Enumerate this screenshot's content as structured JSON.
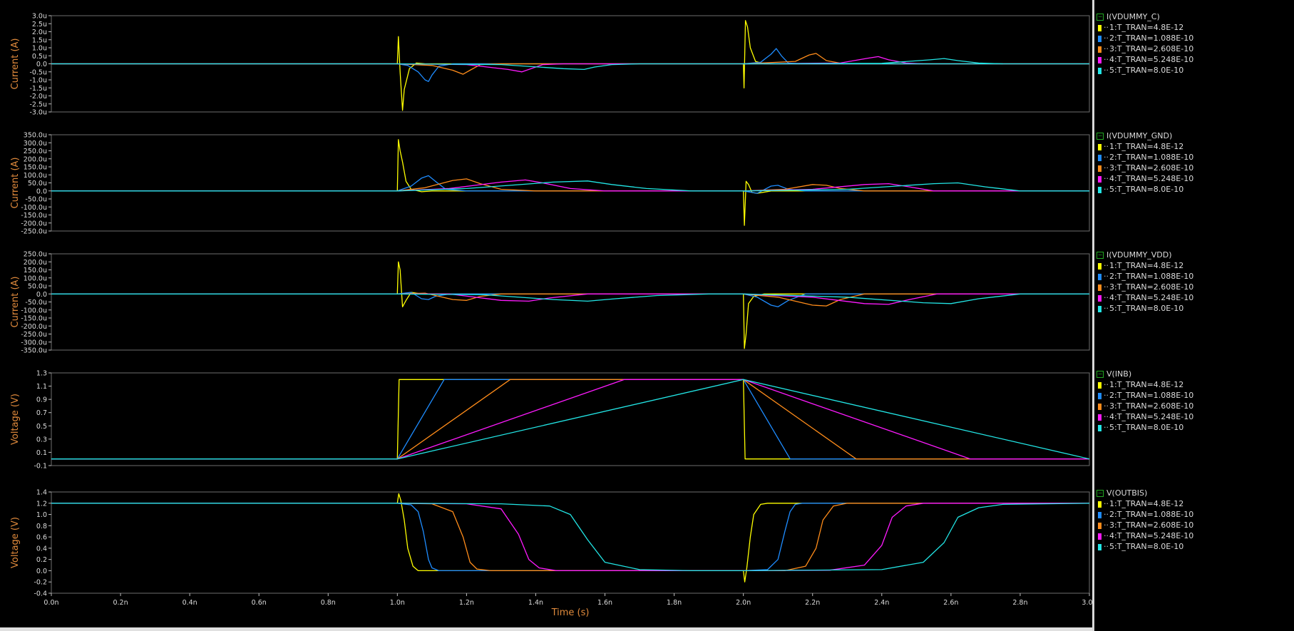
{
  "colors": {
    "background": "#000000",
    "axis_label": "#e08a3c",
    "tick_label": "#dcdcdc",
    "series": [
      "#ffff00",
      "#1e8cff",
      "#ff8c1a",
      "#ff1aff",
      "#22e6e6"
    ]
  },
  "legend_entries": [
    "1:T_TRAN=4.8E-12",
    "2:T_TRAN=1.088E-10",
    "3:T_TRAN=2.608E-10",
    "4:T_TRAN=5.248E-10",
    "5:T_TRAN=8.0E-10"
  ],
  "x_axis": {
    "label": "Time (s)",
    "range": [
      0,
      3.0
    ],
    "ticks": [
      "0.0n",
      "0.2n",
      "0.4n",
      "0.6n",
      "0.8n",
      "1.0n",
      "1.2n",
      "1.4n",
      "1.6n",
      "1.8n",
      "2.0n",
      "2.2n",
      "2.4n",
      "2.6n",
      "2.8n",
      "3.0n"
    ]
  },
  "chart_data": [
    {
      "type": "line",
      "title": "I(VDUMMY_C)",
      "ylabel": "Current (A)",
      "ylim": [
        -3.0,
        3.0
      ],
      "y_ticks": [
        "3.0u",
        "2.5u",
        "2.0u",
        "1.5u",
        "1.0u",
        "0.5u",
        "0.0",
        "-0.5u",
        "-1.0u",
        "-1.5u",
        "-2.0u",
        "-2.5u",
        "-3.0u"
      ],
      "y_tick_values": [
        3.0,
        2.5,
        2.0,
        1.5,
        1.0,
        0.5,
        0.0,
        -0.5,
        -1.0,
        -1.5,
        -2.0,
        -2.5,
        -3.0
      ],
      "series": [
        {
          "name": "1:T_TRAN=4.8E-12",
          "x": [
            0,
            1.0,
            1.003,
            1.008,
            1.015,
            1.02,
            1.035,
            1.055,
            1.08,
            1.12,
            2.0,
            2.002,
            2.006,
            2.012,
            2.02,
            2.035,
            2.06,
            2.1,
            3.0
          ],
          "y": [
            0,
            0,
            1.7,
            -0.5,
            -2.9,
            -1.6,
            -0.3,
            0.05,
            0,
            0,
            0,
            -1.5,
            2.7,
            2.3,
            1.0,
            0.15,
            0,
            0,
            0
          ]
        },
        {
          "name": "2:T_TRAN=1.088E-10",
          "x": [
            0,
            1.0,
            1.03,
            1.06,
            1.08,
            1.09,
            1.1,
            1.12,
            1.16,
            3.0
          ],
          "y": [
            0,
            0,
            -0.1,
            -0.5,
            -1.0,
            -1.1,
            -0.7,
            -0.15,
            0,
            0
          ],
          "x2": [
            2.0,
            2.05,
            2.08,
            2.095,
            2.11,
            2.13,
            2.17
          ],
          "y2": [
            0,
            0.1,
            0.6,
            0.95,
            0.5,
            0.05,
            0
          ]
        },
        {
          "name": "3:T_TRAN=2.608E-10",
          "x": [
            0,
            1.0,
            1.1,
            1.16,
            1.19,
            1.21,
            1.24,
            1.3,
            3.0
          ],
          "y": [
            0,
            0,
            -0.1,
            -0.4,
            -0.65,
            -0.4,
            -0.05,
            0,
            0
          ],
          "x2": [
            2.0,
            2.15,
            2.19,
            2.21,
            2.24,
            2.29
          ],
          "y2": [
            0,
            0.15,
            0.55,
            0.65,
            0.2,
            0
          ]
        },
        {
          "name": "4:T_TRAN=5.248E-10",
          "x": [
            0,
            1.0,
            1.2,
            1.32,
            1.36,
            1.38,
            1.42,
            1.48,
            3.0
          ],
          "y": [
            0,
            0,
            -0.05,
            -0.35,
            -0.5,
            -0.35,
            -0.05,
            0,
            0
          ],
          "x2": [
            2.0,
            2.28,
            2.36,
            2.39,
            2.42,
            2.47,
            2.52
          ],
          "y2": [
            0,
            0.05,
            0.35,
            0.45,
            0.25,
            0.05,
            0
          ]
        },
        {
          "name": "5:T_TRAN=8.0E-10",
          "x": [
            0,
            1.0,
            1.3,
            1.48,
            1.54,
            1.57,
            1.62,
            1.7,
            3.0
          ],
          "y": [
            0,
            0,
            -0.05,
            -0.3,
            -0.35,
            -0.2,
            -0.05,
            0,
            0
          ],
          "x2": [
            2.0,
            2.4,
            2.54,
            2.58,
            2.62,
            2.68,
            2.75
          ],
          "y2": [
            0,
            0.03,
            0.25,
            0.33,
            0.2,
            0.05,
            0
          ]
        }
      ]
    },
    {
      "type": "line",
      "title": "I(VDUMMY_GND)",
      "ylabel": "Current (A)",
      "ylim": [
        -250,
        350
      ],
      "y_ticks": [
        "350.0u",
        "300.0u",
        "250.0u",
        "200.0u",
        "150.0u",
        "100.0u",
        "50.0u",
        "0.0",
        "-50.0u",
        "-100.0u",
        "-150.0u",
        "-200.0u",
        "-250.0u"
      ],
      "y_tick_values": [
        350,
        300,
        250,
        200,
        150,
        100,
        50,
        0,
        -50,
        -100,
        -150,
        -200,
        -250
      ],
      "series": [
        {
          "name": "1:T_TRAN=4.8E-12",
          "x": [
            0,
            1.0,
            1.003,
            1.008,
            1.015,
            1.025,
            1.04,
            1.07,
            1.1,
            2.0,
            2.003,
            2.008,
            2.015,
            2.025,
            2.04,
            2.08,
            3.0
          ],
          "y": [
            0,
            0,
            320,
            250,
            180,
            60,
            10,
            -5,
            0,
            0,
            -215,
            60,
            40,
            -10,
            -15,
            0,
            0
          ]
        },
        {
          "name": "2:T_TRAN=1.088E-10",
          "x": [
            0,
            1.0,
            1.04,
            1.07,
            1.09,
            1.11,
            1.14,
            1.2,
            2.0,
            2.04,
            2.08,
            2.1,
            2.13,
            2.18,
            3.0
          ],
          "y": [
            0,
            0,
            30,
            80,
            95,
            60,
            10,
            0,
            0,
            -15,
            30,
            35,
            10,
            0,
            0
          ]
        },
        {
          "name": "3:T_TRAN=2.608E-10",
          "x": [
            0,
            1.0,
            1.08,
            1.16,
            1.2,
            1.24,
            1.3,
            1.4,
            2.0,
            2.12,
            2.2,
            2.24,
            2.28,
            2.35,
            3.0
          ],
          "y": [
            0,
            0,
            20,
            65,
            75,
            45,
            10,
            0,
            0,
            10,
            40,
            35,
            15,
            0,
            0
          ]
        },
        {
          "name": "4:T_TRAN=5.248E-10",
          "x": [
            0,
            1.0,
            1.15,
            1.3,
            1.37,
            1.42,
            1.5,
            1.6,
            2.0,
            2.2,
            2.35,
            2.42,
            2.48,
            2.55,
            3.0
          ],
          "y": [
            0,
            0,
            15,
            55,
            68,
            50,
            15,
            0,
            0,
            10,
            40,
            45,
            25,
            0,
            0
          ]
        },
        {
          "name": "5:T_TRAN=8.0E-10",
          "x": [
            0,
            1.0,
            1.2,
            1.45,
            1.55,
            1.62,
            1.72,
            1.85,
            2.0,
            2.3,
            2.55,
            2.62,
            2.7,
            2.8,
            3.0
          ],
          "y": [
            0,
            0,
            15,
            55,
            62,
            40,
            15,
            0,
            0,
            10,
            45,
            50,
            25,
            0,
            0
          ]
        }
      ]
    },
    {
      "type": "line",
      "title": "I(VDUMMY_VDD)",
      "ylabel": "Current (A)",
      "ylim": [
        -350,
        250
      ],
      "y_ticks": [
        "250.0u",
        "200.0u",
        "150.0u",
        "100.0u",
        "50.0u",
        "0.0",
        "-50.0u",
        "-100.0u",
        "-150.0u",
        "-200.0u",
        "-250.0u",
        "-300.0u",
        "-350.0u"
      ],
      "y_tick_values": [
        250,
        200,
        150,
        100,
        50,
        0,
        -50,
        -100,
        -150,
        -200,
        -250,
        -300,
        -350
      ],
      "series": [
        {
          "name": "1:T_TRAN=4.8E-12",
          "x": [
            0,
            1.0,
            1.003,
            1.008,
            1.015,
            1.025,
            1.04,
            1.07,
            2.0,
            2.003,
            2.008,
            2.015,
            2.03,
            2.06,
            3.0
          ],
          "y": [
            0,
            0,
            200,
            150,
            -80,
            -40,
            10,
            0,
            0,
            -340,
            -250,
            -60,
            -15,
            0,
            0
          ]
        },
        {
          "name": "2:T_TRAN=1.088E-10",
          "x": [
            0,
            1.0,
            1.04,
            1.07,
            1.09,
            1.11,
            1.15,
            2.0,
            2.04,
            2.08,
            2.1,
            2.13,
            2.18,
            3.0
          ],
          "y": [
            0,
            0,
            10,
            -30,
            -35,
            -15,
            0,
            0,
            -20,
            -70,
            -80,
            -40,
            0,
            0
          ]
        },
        {
          "name": "3:T_TRAN=2.608E-10",
          "x": [
            0,
            1.0,
            1.08,
            1.16,
            1.2,
            1.24,
            1.3,
            2.0,
            2.1,
            2.2,
            2.24,
            2.28,
            2.35,
            3.0
          ],
          "y": [
            0,
            0,
            5,
            -35,
            -40,
            -15,
            0,
            0,
            -20,
            -70,
            -75,
            -35,
            0,
            0
          ]
        },
        {
          "name": "4:T_TRAN=5.248E-10",
          "x": [
            0,
            1.0,
            1.15,
            1.3,
            1.38,
            1.44,
            1.55,
            2.0,
            2.2,
            2.35,
            2.42,
            2.48,
            2.56,
            3.0
          ],
          "y": [
            0,
            0,
            0,
            -40,
            -45,
            -25,
            0,
            0,
            -20,
            -60,
            -65,
            -35,
            0,
            0
          ]
        },
        {
          "name": "5:T_TRAN=8.0E-10",
          "x": [
            0,
            1.0,
            1.25,
            1.45,
            1.55,
            1.63,
            1.75,
            1.9,
            2.0,
            2.3,
            2.52,
            2.6,
            2.68,
            2.8,
            3.0
          ],
          "y": [
            0,
            0,
            -5,
            -35,
            -45,
            -30,
            -10,
            0,
            0,
            -20,
            -55,
            -60,
            -30,
            0,
            0
          ]
        }
      ]
    },
    {
      "type": "line",
      "title": "V(INB)",
      "ylabel": "Voltage (V)",
      "ylim": [
        -0.1,
        1.3
      ],
      "y_ticks": [
        "1.3",
        "1.1",
        "0.9",
        "0.7",
        "0.5",
        "0.3",
        "0.1",
        "-0.1"
      ],
      "y_tick_values": [
        1.3,
        1.1,
        0.9,
        0.7,
        0.5,
        0.3,
        0.1,
        -0.1
      ],
      "series": [
        {
          "name": "1:T_TRAN=4.8E-12",
          "x": [
            0,
            1.0,
            1.005,
            2.0,
            2.005,
            3.0
          ],
          "y": [
            0,
            0,
            1.2,
            1.2,
            0,
            0
          ]
        },
        {
          "name": "2:T_TRAN=1.088E-10",
          "x": [
            0,
            1.0,
            1.1352,
            2.0,
            2.1352,
            3.0
          ],
          "y": [
            0,
            0,
            1.2,
            1.2,
            0,
            0
          ]
        },
        {
          "name": "3:T_TRAN=2.608E-10",
          "x": [
            0,
            1.0,
            1.326,
            2.0,
            2.326,
            3.0
          ],
          "y": [
            0,
            0,
            1.2,
            1.2,
            0,
            0
          ]
        },
        {
          "name": "4:T_TRAN=5.248E-10",
          "x": [
            0,
            1.0,
            1.656,
            2.0,
            2.656,
            3.0
          ],
          "y": [
            0,
            0,
            1.2,
            1.2,
            0,
            0
          ]
        },
        {
          "name": "5:T_TRAN=8.0E-10",
          "x": [
            0,
            1.0,
            2.0,
            3.0
          ],
          "y": [
            0,
            0,
            1.2,
            0
          ]
        }
      ]
    },
    {
      "type": "line",
      "title": "V(OUTBIS)",
      "ylabel": "Voltage (V)",
      "ylim": [
        -0.4,
        1.4
      ],
      "y_ticks": [
        "1.4",
        "1.2",
        "1.0",
        "0.8",
        "0.6",
        "0.4",
        "0.2",
        "0.0",
        "-0.2",
        "-0.4"
      ],
      "y_tick_values": [
        1.4,
        1.2,
        1.0,
        0.8,
        0.6,
        0.4,
        0.2,
        0.0,
        -0.2,
        -0.4
      ],
      "series": [
        {
          "name": "1:T_TRAN=4.8E-12",
          "x": [
            0,
            1.0,
            1.004,
            1.01,
            1.02,
            1.03,
            1.045,
            1.06,
            1.08,
            2.0,
            2.004,
            2.01,
            2.02,
            2.03,
            2.05,
            2.07,
            2.1,
            3.0
          ],
          "y": [
            1.2,
            1.2,
            1.37,
            1.25,
            0.9,
            0.4,
            0.08,
            0,
            0,
            0,
            -0.2,
            0.05,
            0.6,
            1.0,
            1.18,
            1.2,
            1.2,
            1.2
          ]
        },
        {
          "name": "2:T_TRAN=1.088E-10",
          "x": [
            0,
            1.0,
            1.04,
            1.06,
            1.075,
            1.09,
            1.1,
            1.12,
            1.15,
            2.0,
            2.07,
            2.1,
            2.12,
            2.135,
            2.15,
            2.17,
            3.0
          ],
          "y": [
            1.2,
            1.2,
            1.17,
            1.05,
            0.7,
            0.2,
            0.05,
            0,
            0,
            0,
            0.02,
            0.2,
            0.7,
            1.05,
            1.18,
            1.2,
            1.2
          ]
        },
        {
          "name": "3:T_TRAN=2.608E-10",
          "x": [
            0,
            1.0,
            1.1,
            1.16,
            1.19,
            1.21,
            1.23,
            1.27,
            2.0,
            2.12,
            2.18,
            2.21,
            2.23,
            2.26,
            2.3,
            3.0
          ],
          "y": [
            1.2,
            1.2,
            1.19,
            1.05,
            0.6,
            0.15,
            0.03,
            0,
            0,
            0.0,
            0.08,
            0.4,
            0.9,
            1.15,
            1.2,
            1.2
          ]
        },
        {
          "name": "4:T_TRAN=5.248E-10",
          "x": [
            0,
            1.0,
            1.2,
            1.3,
            1.35,
            1.38,
            1.41,
            1.46,
            2.0,
            2.25,
            2.35,
            2.4,
            2.43,
            2.47,
            2.52,
            3.0
          ],
          "y": [
            1.2,
            1.2,
            1.19,
            1.1,
            0.65,
            0.2,
            0.05,
            0,
            0,
            0.01,
            0.1,
            0.45,
            0.95,
            1.15,
            1.2,
            1.2
          ]
        },
        {
          "name": "5:T_TRAN=8.0E-10",
          "x": [
            0,
            1.0,
            1.3,
            1.44,
            1.5,
            1.55,
            1.6,
            1.7,
            1.85,
            2.0,
            2.4,
            2.52,
            2.58,
            2.62,
            2.68,
            2.75,
            3.0
          ],
          "y": [
            1.2,
            1.2,
            1.19,
            1.15,
            1.0,
            0.55,
            0.15,
            0.02,
            0,
            0,
            0.02,
            0.15,
            0.5,
            0.95,
            1.12,
            1.18,
            1.2
          ]
        }
      ]
    }
  ]
}
